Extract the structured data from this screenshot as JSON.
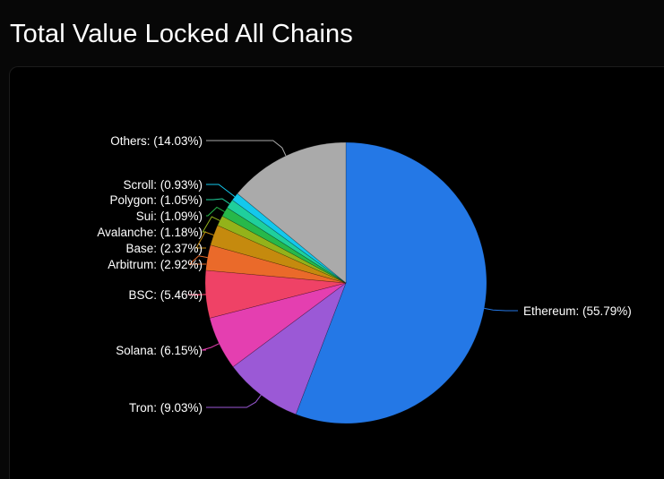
{
  "page": {
    "title": "Total Value Locked All Chains"
  },
  "chart_data": {
    "type": "pie",
    "title": "Total Value Locked All Chains",
    "start_angle_deg": 0,
    "direction": "clockwise",
    "slices": [
      {
        "label": "Ethereum",
        "value": 55.79,
        "display": "Ethereum: (55.79%)",
        "color": "#2478e6"
      },
      {
        "label": "Tron",
        "value": 9.03,
        "display": "Tron: (9.03%)",
        "color": "#9b59d6"
      },
      {
        "label": "Solana",
        "value": 6.15,
        "display": "Solana: (6.15%)",
        "color": "#e43fb0"
      },
      {
        "label": "BSC",
        "value": 5.46,
        "display": "BSC: (5.46%)",
        "color": "#ef4266"
      },
      {
        "label": "Arbitrum",
        "value": 2.92,
        "display": "Arbitrum: (2.92%)",
        "color": "#ea6a2a"
      },
      {
        "label": "Base",
        "value": 2.37,
        "display": "Base: (2.37%)",
        "color": "#c58a0e"
      },
      {
        "label": "Avalanche",
        "value": 1.18,
        "display": "Avalanche: (1.18%)",
        "color": "#93b21a"
      },
      {
        "label": "Sui",
        "value": 1.09,
        "display": "Sui: (1.09%)",
        "color": "#27b84a"
      },
      {
        "label": "Polygon",
        "value": 1.05,
        "display": "Polygon: (1.05%)",
        "color": "#1fcf9c"
      },
      {
        "label": "Scroll",
        "value": 0.93,
        "display": "Scroll: (0.93%)",
        "color": "#14c8ec"
      },
      {
        "label": "Others",
        "value": 14.03,
        "display": "Others: (14.03%)",
        "color": "#aaaaaa"
      }
    ]
  }
}
